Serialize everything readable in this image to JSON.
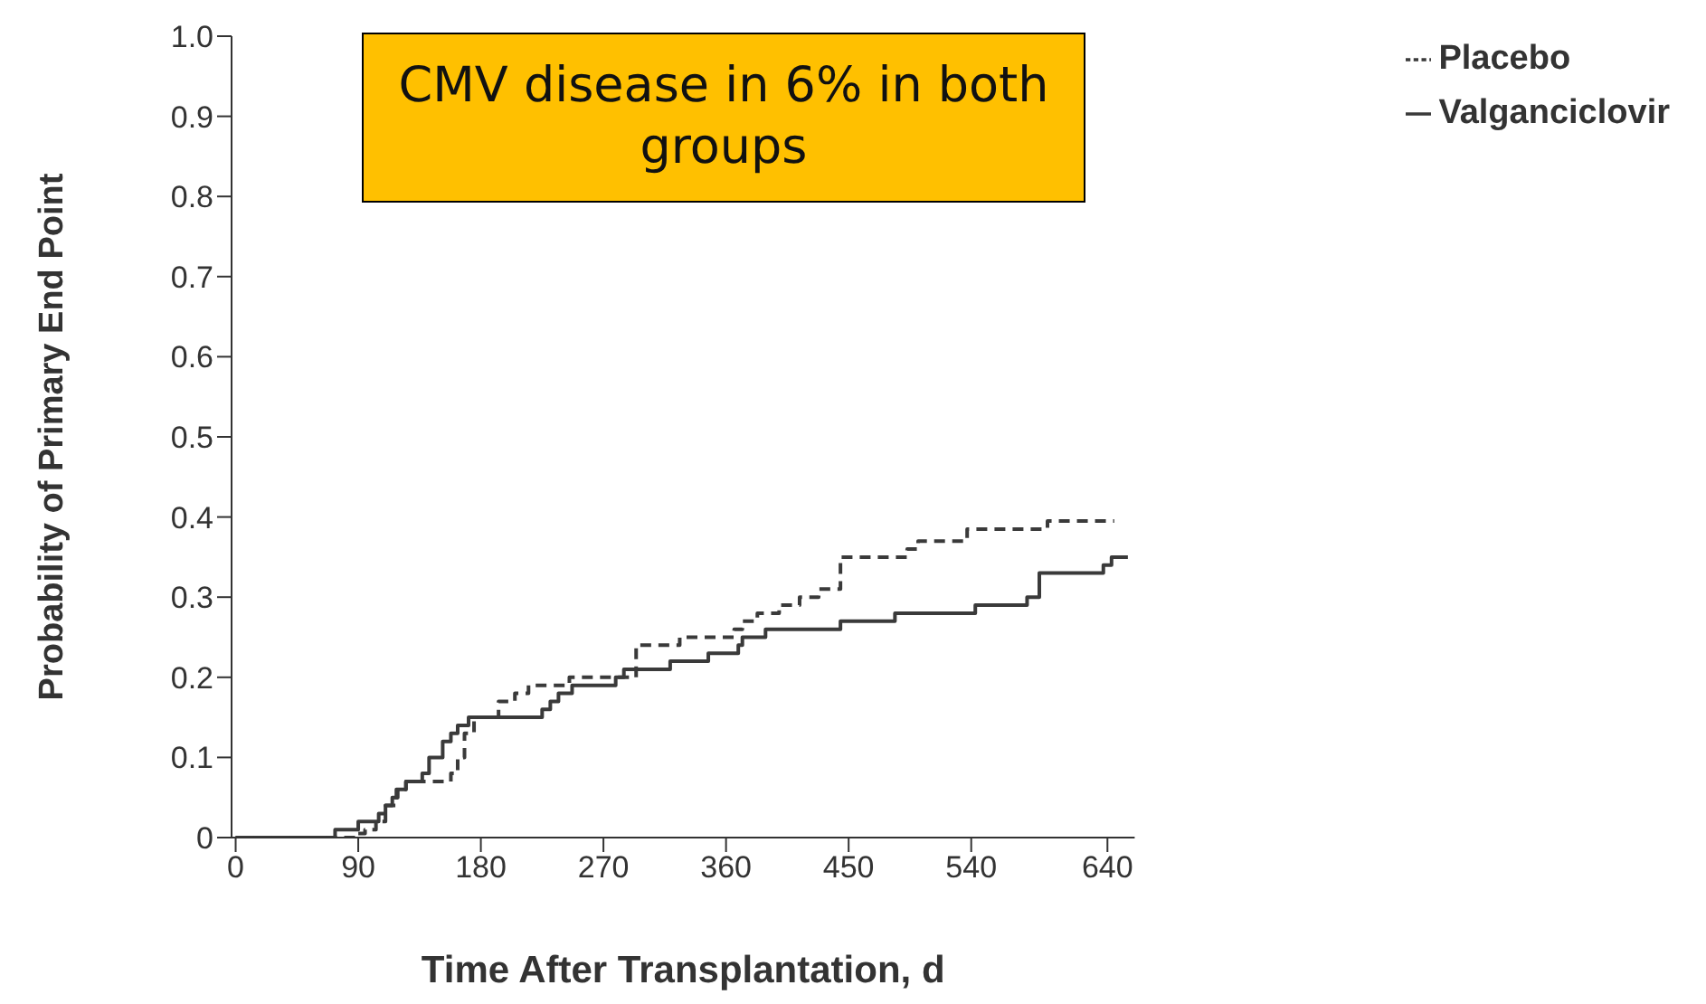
{
  "chart_data": {
    "type": "step",
    "xlabel": "Time After Transplantation, d",
    "ylabel": "Probability of Primary End Point",
    "annotations": [
      "CMV disease in 6% in both groups"
    ],
    "xlim": [
      -3,
      660
    ],
    "xticks": [
      0,
      90,
      180,
      270,
      360,
      450,
      540,
      640
    ],
    "ylim": [
      0,
      1
    ],
    "yticks": [
      0,
      0.1,
      0.2,
      0.3,
      0.4,
      0.5,
      0.6,
      0.7,
      0.8,
      0.9,
      {
        "value": 1,
        "label": "1.0"
      }
    ],
    "grid": false,
    "legend": "top right",
    "marker": "none",
    "series": [
      {
        "name": "Valganciclovir",
        "color": "#3a3a3a",
        "line_style": "solid",
        "x": [
          0,
          73,
          90,
          105,
          110,
          115,
          119,
          125,
          137,
          142,
          152,
          158,
          163,
          171,
          225,
          231,
          237,
          247,
          279,
          285,
          319,
          347,
          369,
          372,
          389,
          444,
          484,
          543,
          581,
          590,
          637,
          643,
          655
        ],
        "values": [
          0,
          0.01,
          0.02,
          0.03,
          0.04,
          0.05,
          0.06,
          0.07,
          0.08,
          0.1,
          0.12,
          0.13,
          0.14,
          0.15,
          0.16,
          0.17,
          0.18,
          0.19,
          0.2,
          0.21,
          0.22,
          0.23,
          0.24,
          0.25,
          0.26,
          0.27,
          0.28,
          0.29,
          0.3,
          0.33,
          0.34,
          0.35,
          0.35
        ]
      },
      {
        "name": "Placebo",
        "color": "#3a3a3a",
        "line_style": "dashed",
        "x": [
          0,
          90,
          95,
          103,
          110,
          118,
          125,
          158,
          163,
          168,
          175,
          193,
          205,
          215,
          245,
          294,
          326,
          366,
          372,
          383,
          399,
          414,
          428,
          444,
          493,
          501,
          537,
          596,
          645
        ],
        "values": [
          0,
          0.005,
          0.01,
          0.02,
          0.04,
          0.06,
          0.07,
          0.08,
          0.1,
          0.13,
          0.15,
          0.17,
          0.18,
          0.19,
          0.2,
          0.24,
          0.25,
          0.26,
          0.27,
          0.28,
          0.29,
          0.3,
          0.31,
          0.35,
          0.36,
          0.37,
          0.385,
          0.395,
          0.395
        ]
      }
    ]
  }
}
